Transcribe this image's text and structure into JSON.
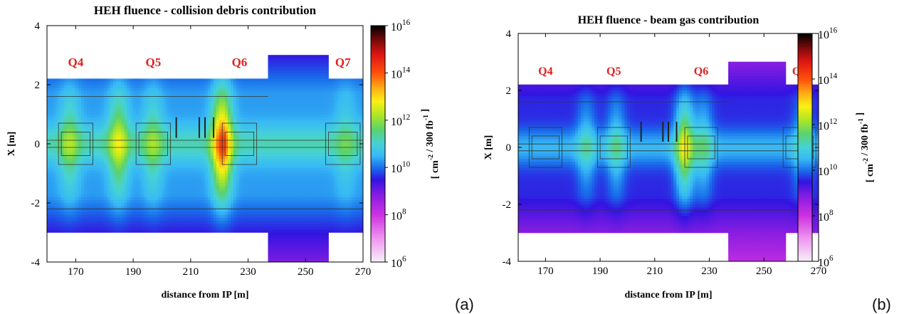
{
  "chart_data": [
    {
      "type": "heatmap",
      "panel_label": "(a)",
      "title": "HEH fluence - collision debris contribution",
      "xlabel": "distance from IP [m]",
      "ylabel": "X [m]",
      "colorbar_label": "[ cm-2 / 300 fb-1 ]",
      "xlim": [
        160,
        270
      ],
      "ylim": [
        -4,
        4
      ],
      "xticks": [
        "170",
        "190",
        "210",
        "230",
        "250",
        "270"
      ],
      "yticks": [
        "-4",
        "-2",
        "0",
        "2",
        "4"
      ],
      "colorbar": {
        "scale": "log",
        "min_exp": 6,
        "max_exp": 16,
        "labels": [
          "6",
          "8",
          "10",
          "12",
          "14",
          "16"
        ]
      },
      "quadrupoles": [
        {
          "name": "Q4",
          "x": 170
        },
        {
          "name": "Q5",
          "x": 197
        },
        {
          "name": "Q6",
          "x": 227
        },
        {
          "name": "Q7",
          "x": 263
        }
      ],
      "background_log_fluence": 10.3,
      "hotspots": [
        {
          "x": 221,
          "log_fluence": 13.4
        },
        {
          "x": 185,
          "log_fluence": 11.9
        },
        {
          "x": 197,
          "log_fluence": 11.3
        },
        {
          "x": 168,
          "log_fluence": 11.4
        },
        {
          "x": 264,
          "log_fluence": 10.9
        }
      ]
    },
    {
      "type": "heatmap",
      "panel_label": "(b)",
      "title": "HEH fluence - beam gas contribution",
      "xlabel": "distance from IP [m]",
      "ylabel": "X [m]",
      "colorbar_label": "[ cm-2 / 300 fb-1 ]",
      "xlim": [
        160,
        270
      ],
      "ylim": [
        -4,
        4
      ],
      "xticks": [
        "170",
        "190",
        "210",
        "230",
        "250",
        "270"
      ],
      "yticks": [
        "-4",
        "-2",
        "0",
        "2",
        "4"
      ],
      "colorbar": {
        "scale": "log",
        "min_exp": 6,
        "max_exp": 16,
        "labels": [
          "6",
          "8",
          "10",
          "12",
          "14",
          "16"
        ]
      },
      "quadrupoles": [
        {
          "name": "Q4",
          "x": 170
        },
        {
          "name": "Q5",
          "x": 195
        },
        {
          "name": "Q6",
          "x": 227
        },
        {
          "name": "Q7",
          "x": 263
        }
      ],
      "background_log_fluence": 9.6,
      "hotspots": [
        {
          "x": 221,
          "log_fluence": 11.9
        },
        {
          "x": 196,
          "log_fluence": 10.6
        },
        {
          "x": 185,
          "log_fluence": 10.5
        },
        {
          "x": 228,
          "log_fluence": 10.7
        },
        {
          "x": 264,
          "log_fluence": 10.4
        }
      ]
    }
  ]
}
